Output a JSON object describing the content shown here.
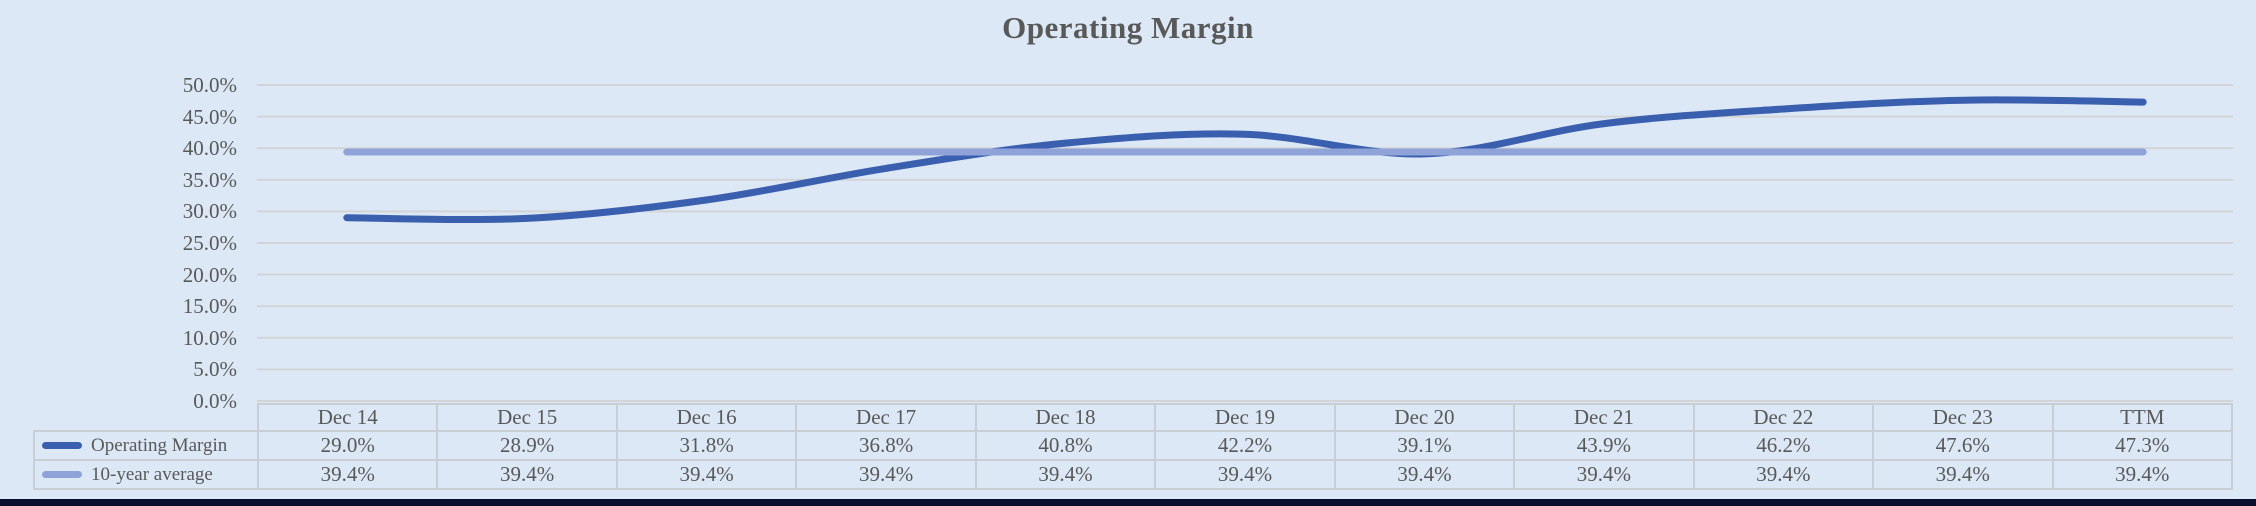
{
  "title": "Operating Margin",
  "chart_data": {
    "type": "line",
    "title": "Operating Margin",
    "categories": [
      "Dec 14",
      "Dec 15",
      "Dec 16",
      "Dec 17",
      "Dec 18",
      "Dec 19",
      "Dec 20",
      "Dec 21",
      "Dec 22",
      "Dec 23",
      "TTM"
    ],
    "series": [
      {
        "name": "Operating Margin",
        "values": [
          29.0,
          28.9,
          31.8,
          36.8,
          40.8,
          42.2,
          39.1,
          43.9,
          46.2,
          47.6,
          47.3
        ],
        "color": "#3a5fae",
        "smooth": true
      },
      {
        "name": "10-year average",
        "values": [
          39.4,
          39.4,
          39.4,
          39.4,
          39.4,
          39.4,
          39.4,
          39.4,
          39.4,
          39.4,
          39.4
        ],
        "color": "#8fa3d9",
        "smooth": false
      }
    ],
    "ylim": [
      0,
      50
    ],
    "ytick_step": 5,
    "ytick_labels": [
      "0.0%",
      "5.0%",
      "10.0%",
      "15.0%",
      "20.0%",
      "25.0%",
      "30.0%",
      "35.0%",
      "40.0%",
      "45.0%",
      "50.0%"
    ],
    "grid": "horizontal",
    "legend_position": "table-left"
  },
  "table": {
    "headers": [
      "Dec 14",
      "Dec 15",
      "Dec 16",
      "Dec 17",
      "Dec 18",
      "Dec 19",
      "Dec 20",
      "Dec 21",
      "Dec 22",
      "Dec 23",
      "TTM"
    ],
    "rows": [
      {
        "label": "Operating Margin",
        "values": [
          "29.0%",
          "28.9%",
          "31.8%",
          "36.8%",
          "40.8%",
          "42.2%",
          "39.1%",
          "43.9%",
          "46.2%",
          "47.6%",
          "47.3%"
        ]
      },
      {
        "label": "10-year average",
        "values": [
          "39.4%",
          "39.4%",
          "39.4%",
          "39.4%",
          "39.4%",
          "39.4%",
          "39.4%",
          "39.4%",
          "39.4%",
          "39.4%",
          "39.4%"
        ]
      }
    ]
  },
  "colors": {
    "background": "#dce8f5",
    "gridline": "#d2d4d7",
    "series_main": "#3a5fae",
    "series_avg": "#8fa3d9",
    "text": "#595959",
    "table_border": "#c9ced4",
    "bottom_bar": "#0a0f2e"
  }
}
